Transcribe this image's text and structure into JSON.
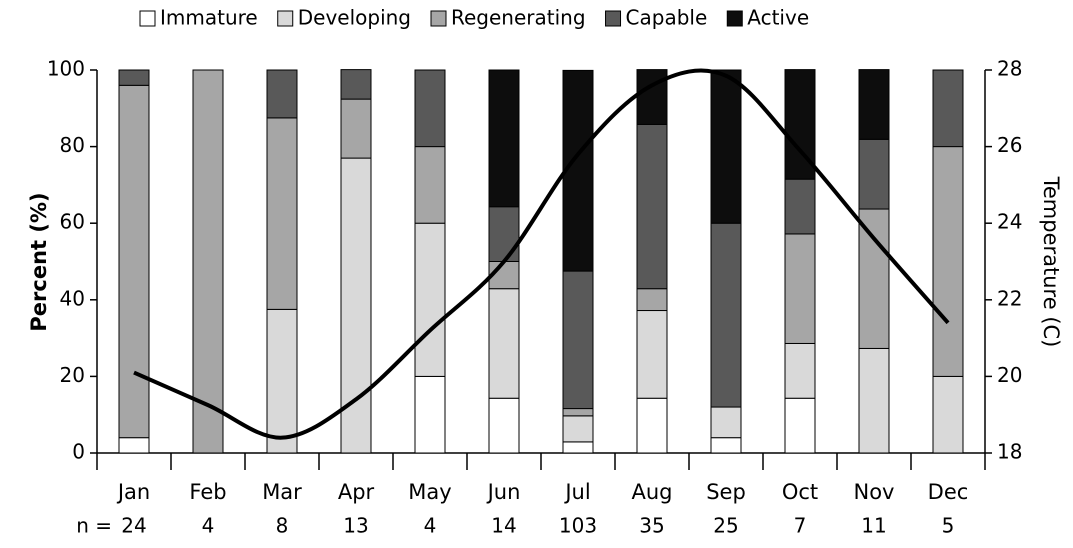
{
  "chart_data": {
    "type": "bar",
    "stacked": true,
    "categories": [
      "Jan",
      "Feb",
      "Mar",
      "Apr",
      "May",
      "Jun",
      "Jul",
      "Aug",
      "Sep",
      "Oct",
      "Nov",
      "Dec"
    ],
    "n_label": "n =",
    "n": [
      "24",
      "4",
      "8",
      "13",
      "4",
      "14",
      "103",
      "35",
      "25",
      "7",
      "11",
      "5"
    ],
    "ylabel": "Percent (%)",
    "y2label": "Temperature (C)",
    "ylim": [
      0,
      100
    ],
    "yticks": [
      0,
      20,
      40,
      60,
      80,
      100
    ],
    "y2lim": [
      18,
      28
    ],
    "y2ticks": [
      18,
      20,
      22,
      24,
      26,
      28
    ],
    "series": [
      {
        "name": "Immature",
        "color": "#ffffff",
        "values": [
          4,
          0,
          0,
          0,
          20,
          14.3,
          2.9,
          14.3,
          4,
          14.3,
          0,
          0
        ]
      },
      {
        "name": "Developing",
        "color": "#d9d9d9",
        "values": [
          0,
          0,
          37.5,
          77,
          40,
          28.6,
          6.8,
          22.9,
          8,
          14.3,
          27.3,
          20
        ]
      },
      {
        "name": "Regenerating",
        "color": "#a6a6a6",
        "values": [
          92,
          100,
          50,
          15.4,
          20,
          7.1,
          1.9,
          5.7,
          0,
          28.6,
          36.4,
          60
        ]
      },
      {
        "name": "Capable",
        "color": "#595959",
        "values": [
          4,
          0,
          12.5,
          7.7,
          20,
          14.3,
          35.9,
          42.9,
          48,
          14.3,
          18.2,
          20
        ]
      },
      {
        "name": "Active",
        "color": "#0d0d0d",
        "values": [
          0,
          0,
          0,
          0,
          0,
          35.7,
          52.4,
          14.3,
          40,
          28.6,
          18.2,
          0
        ]
      },
      {
        "type": "line",
        "axis": "y2",
        "color": "#000000",
        "values": [
          20.1,
          19.25,
          18.4,
          19.4,
          21.2,
          23.0,
          25.8,
          27.6,
          27.85,
          25.9,
          23.6,
          21.4
        ]
      }
    ]
  }
}
